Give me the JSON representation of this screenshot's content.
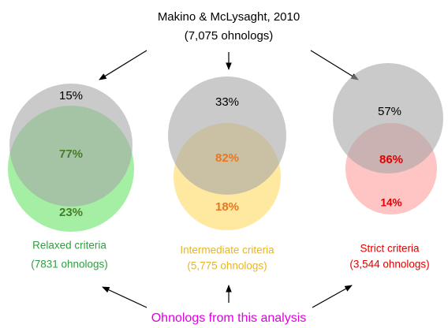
{
  "source": {
    "title": "Makino & McLysaght, 2010",
    "subtitle": "(7,075 ohnologs)"
  },
  "sets": [
    {
      "label": "Relaxed criteria",
      "count": "(7831 ohnologs)",
      "top": "15%",
      "overlap": "77%",
      "bottom": "23%"
    },
    {
      "label": "Intermediate criteria",
      "count": "(5,775 ohnologs)",
      "top": "33%",
      "overlap": "82%",
      "bottom": "18%"
    },
    {
      "label": "Strict criteria",
      "count": "(3,544 ohnologs)",
      "top": "57%",
      "overlap": "86%",
      "bottom": "14%"
    }
  ],
  "footer": "Ohnologs from this analysis"
}
